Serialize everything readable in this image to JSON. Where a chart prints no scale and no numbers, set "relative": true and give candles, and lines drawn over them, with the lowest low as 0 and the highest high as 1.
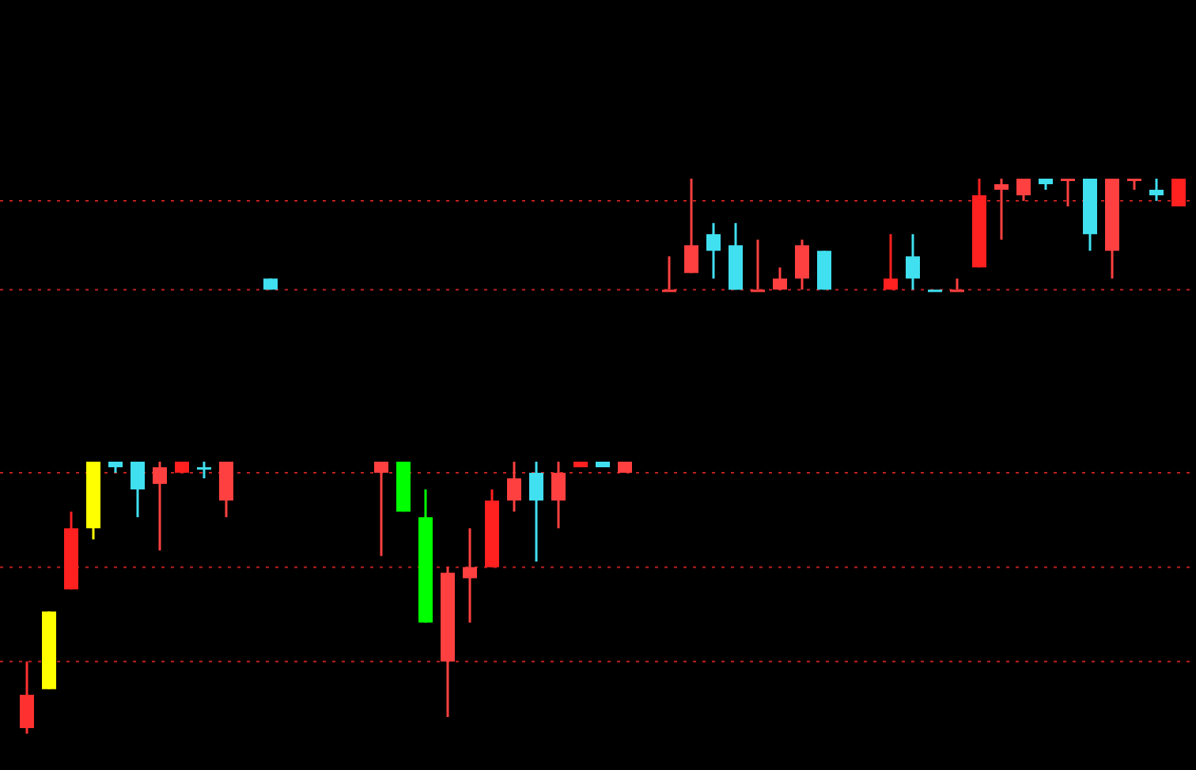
{
  "chart_data": {
    "type": "candlestick",
    "relative": true,
    "categories": [
      null,
      null,
      null,
      null,
      null,
      null,
      null,
      null,
      null,
      null,
      null,
      null,
      null,
      null,
      null,
      null,
      null,
      null,
      null,
      null,
      null,
      null,
      null,
      null,
      null,
      null,
      null,
      null,
      null,
      null,
      null,
      null,
      null,
      null,
      null,
      null,
      null,
      null,
      null,
      null,
      null,
      null,
      null,
      null,
      null,
      null,
      null,
      null,
      null,
      null,
      null,
      null,
      null
    ],
    "ohlc": [
      [
        0.01,
        0.13,
        0,
        0.07
      ],
      [
        0.08,
        0.22,
        0.08,
        0.22
      ],
      [
        0.26,
        0.4,
        0.26,
        0.37
      ],
      [
        0.37,
        0.49,
        0.35,
        0.49
      ],
      [
        0.49,
        0.49,
        0.47,
        0.48
      ],
      [
        0.49,
        0.49,
        0.39,
        0.44
      ],
      [
        0.45,
        0.49,
        0.33,
        0.48
      ],
      [
        0.47,
        0.49,
        0.47,
        0.49
      ],
      [
        0.48,
        0.49,
        0.46,
        0.48
      ],
      [
        0.42,
        0.49,
        0.39,
        0.49
      ],
      null,
      [
        0.82,
        0.82,
        0.8,
        0.8
      ],
      null,
      null,
      null,
      null,
      [
        0.47,
        0.49,
        0.32,
        0.49
      ],
      [
        0.49,
        0.49,
        0.4,
        0.4
      ],
      [
        0.39,
        0.44,
        0.2,
        0.2
      ],
      [
        0.13,
        0.3,
        0.03,
        0.29
      ],
      [
        0.28,
        0.37,
        0.2,
        0.3
      ],
      [
        0.3,
        0.44,
        0.3,
        0.42
      ],
      [
        0.42,
        0.49,
        0.4,
        0.46
      ],
      [
        0.47,
        0.49,
        0.31,
        0.42
      ],
      [
        0.42,
        0.49,
        0.37,
        0.47
      ],
      [
        0.48,
        0.49,
        0.48,
        0.49
      ],
      [
        0.49,
        0.49,
        0.48,
        0.48
      ],
      [
        0.47,
        0.49,
        0.47,
        0.49
      ],
      null,
      [
        0.8,
        0.86,
        0.8,
        0.8
      ],
      [
        0.83,
        1,
        0.83,
        0.88
      ],
      [
        0.9,
        0.92,
        0.82,
        0.87
      ],
      [
        0.88,
        0.92,
        0.8,
        0.8
      ],
      [
        0.8,
        0.89,
        0.8,
        0.8
      ],
      [
        0.8,
        0.84,
        0.8,
        0.82
      ],
      [
        0.82,
        0.89,
        0.8,
        0.88
      ],
      [
        0.87,
        0.87,
        0.8,
        0.8
      ],
      null,
      null,
      [
        0.8,
        0.9,
        0.8,
        0.82
      ],
      [
        0.86,
        0.9,
        0.8,
        0.82
      ],
      [
        0.8,
        0.8,
        0.8,
        0.8
      ],
      [
        0.8,
        0.82,
        0.8,
        0.8
      ],
      [
        0.84,
        1,
        0.84,
        0.97
      ],
      [
        0.98,
        1,
        0.89,
        0.99
      ],
      [
        0.97,
        1,
        0.96,
        1
      ],
      [
        1,
        1,
        0.98,
        0.99
      ],
      [
        1,
        1,
        0.95,
        1
      ],
      [
        1,
        1,
        0.87,
        0.9
      ],
      [
        0.87,
        1,
        0.82,
        1
      ],
      [
        1,
        1,
        0.98,
        1
      ],
      [
        0.98,
        1,
        0.96,
        0.97
      ],
      [
        0.95,
        1,
        0.95,
        1
      ]
    ],
    "ref_lines": [
      {
        "axis": "y",
        "value": 0.13,
        "color": "#c02020",
        "line_style": "dotted"
      },
      {
        "axis": "y",
        "value": 0.3,
        "color": "#c02020",
        "line_style": "dotted"
      },
      {
        "axis": "y",
        "value": 0.47,
        "color": "#c02020",
        "line_style": "dotted"
      },
      {
        "axis": "y",
        "value": 0.8,
        "color": "#c02020",
        "line_style": "dotted"
      },
      {
        "axis": "y",
        "value": 0.96,
        "color": "#c02020",
        "line_style": "dotted"
      }
    ],
    "colors": [
      "#ff3030",
      "#ffff00",
      "#ff2020",
      "#ffff00",
      "#40e0f0",
      "#40e0f0",
      "#ff4040",
      "#ff2020",
      "#40e0f0",
      "#ff4040",
      null,
      "#40e0f0",
      null,
      null,
      null,
      null,
      "#ff4040",
      "#00ff00",
      "#00ff00",
      "#ff4040",
      "#ff4040",
      "#ff2020",
      "#ff4040",
      "#40e0f0",
      "#ff4040",
      "#ff2020",
      "#40e0f0",
      "#ff4040",
      null,
      "#ff4040",
      "#ff4040",
      "#40e0f0",
      "#40e0f0",
      "#ff4040",
      "#ff4040",
      "#ff4040",
      "#40e0f0",
      null,
      null,
      "#ff2020",
      "#40e0f0",
      "#40e0f0",
      "#ff4040",
      "#ff2020",
      "#ff4040",
      "#ff4040",
      "#40e0f0",
      "#ff4040",
      "#40e0f0",
      "#ff4040",
      "#ff4040",
      "#40e0f0",
      "#ff2020"
    ]
  }
}
